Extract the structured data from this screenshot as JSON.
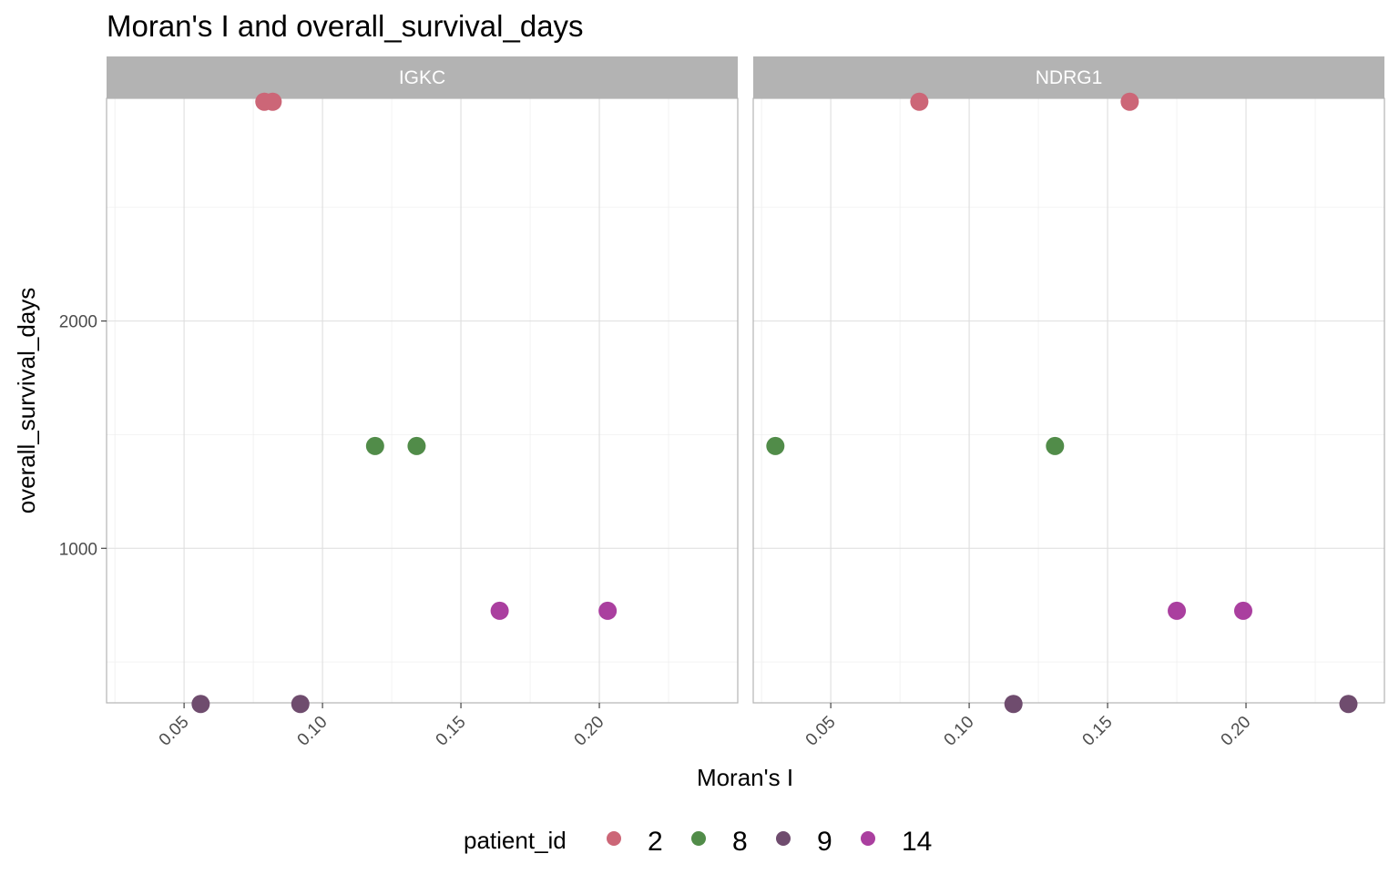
{
  "chart_data": {
    "type": "scatter",
    "title": "Moran's I and overall_survival_days",
    "xlabel": "Moran's I",
    "ylabel": "overall_survival_days",
    "xlim": [
      0.022,
      0.25
    ],
    "ylim": [
      320,
      2980
    ],
    "x_ticks": [
      0.05,
      0.1,
      0.15,
      0.2
    ],
    "x_tick_labels": [
      "0.05",
      "0.10",
      "0.15",
      "0.20"
    ],
    "y_ticks": [
      1000,
      2000
    ],
    "y_tick_labels": [
      "1000",
      "2000"
    ],
    "grid": true,
    "legend": {
      "title": "patient_id",
      "position": "bottom",
      "entries": [
        {
          "label": "2",
          "color": "#cc6677"
        },
        {
          "label": "8",
          "color": "#518c49"
        },
        {
          "label": "9",
          "color": "#6f4c6e"
        },
        {
          "label": "14",
          "color": "#aa3f9f"
        }
      ]
    },
    "facets": [
      {
        "name": "IGKC",
        "points": [
          {
            "x": 0.079,
            "y": 2965,
            "patient_id": "2"
          },
          {
            "x": 0.082,
            "y": 2965,
            "patient_id": "2"
          },
          {
            "x": 0.119,
            "y": 1450,
            "patient_id": "8"
          },
          {
            "x": 0.134,
            "y": 1450,
            "patient_id": "8"
          },
          {
            "x": 0.056,
            "y": 315,
            "patient_id": "9"
          },
          {
            "x": 0.092,
            "y": 315,
            "patient_id": "9"
          },
          {
            "x": 0.164,
            "y": 725,
            "patient_id": "14"
          },
          {
            "x": 0.203,
            "y": 725,
            "patient_id": "14"
          }
        ]
      },
      {
        "name": "NDRG1",
        "points": [
          {
            "x": 0.082,
            "y": 2965,
            "patient_id": "2"
          },
          {
            "x": 0.158,
            "y": 2965,
            "patient_id": "2"
          },
          {
            "x": 0.03,
            "y": 1450,
            "patient_id": "8"
          },
          {
            "x": 0.131,
            "y": 1450,
            "patient_id": "8"
          },
          {
            "x": 0.116,
            "y": 315,
            "patient_id": "9"
          },
          {
            "x": 0.237,
            "y": 315,
            "patient_id": "9"
          },
          {
            "x": 0.175,
            "y": 725,
            "patient_id": "14"
          },
          {
            "x": 0.199,
            "y": 725,
            "patient_id": "14"
          }
        ]
      }
    ]
  }
}
